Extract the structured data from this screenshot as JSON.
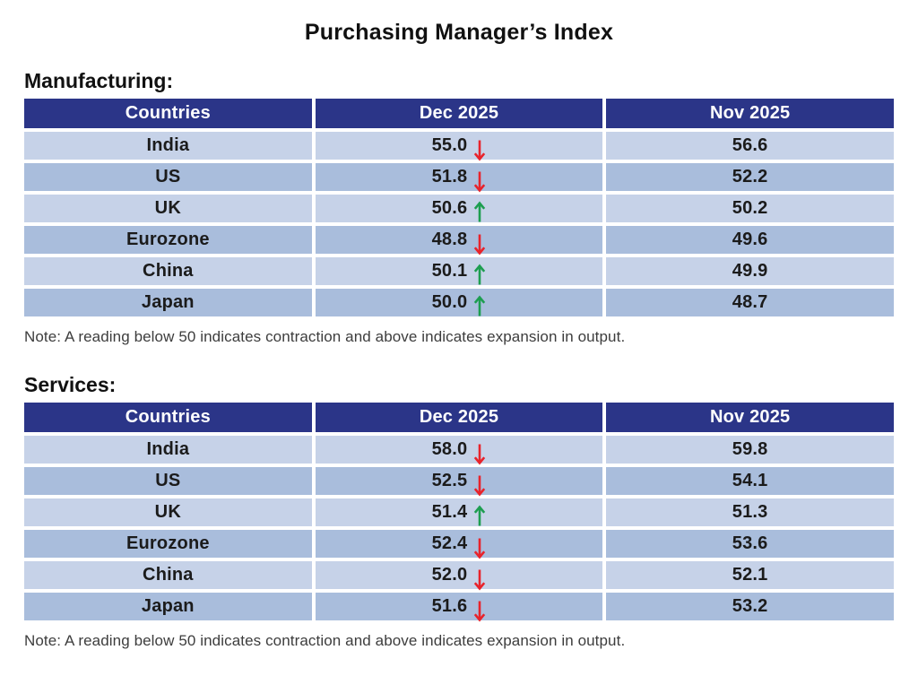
{
  "title": "Purchasing Manager’s Index",
  "colors": {
    "header_bg": "#2B3588",
    "row_light": "#C6D2E8",
    "row_dark": "#A9BDDC",
    "arrow_up": "#1D9E50",
    "arrow_down": "#E8232B",
    "header_text": "#FFFFFF",
    "body_text": "#1B1B1B"
  },
  "tables": [
    {
      "label": "Manufacturing:",
      "columns": [
        "Countries",
        "Dec 2025",
        "Nov 2025"
      ],
      "rows": [
        {
          "country": "India",
          "dec": "55.0",
          "trend": "down",
          "nov": "56.6"
        },
        {
          "country": "US",
          "dec": "51.8",
          "trend": "down",
          "nov": "52.2"
        },
        {
          "country": "UK",
          "dec": "50.6",
          "trend": "up",
          "nov": "50.2"
        },
        {
          "country": "Eurozone",
          "dec": "48.8",
          "trend": "down",
          "nov": "49.6"
        },
        {
          "country": "China",
          "dec": "50.1",
          "trend": "up",
          "nov": "49.9"
        },
        {
          "country": "Japan",
          "dec": "50.0",
          "trend": "up",
          "nov": "48.7"
        }
      ],
      "note": "Note: A reading below 50 indicates contraction and above indicates expansion in output."
    },
    {
      "label": "Services:",
      "columns": [
        "Countries",
        "Dec 2025",
        "Nov 2025"
      ],
      "rows": [
        {
          "country": "India",
          "dec": "58.0",
          "trend": "down",
          "nov": "59.8"
        },
        {
          "country": "US",
          "dec": "52.5",
          "trend": "down",
          "nov": "54.1"
        },
        {
          "country": "UK",
          "dec": "51.4",
          "trend": "up",
          "nov": "51.3"
        },
        {
          "country": "Eurozone",
          "dec": "52.4",
          "trend": "down",
          "nov": "53.6"
        },
        {
          "country": "China",
          "dec": "52.0",
          "trend": "down",
          "nov": "52.1"
        },
        {
          "country": "Japan",
          "dec": "51.6",
          "trend": "down",
          "nov": "53.2"
        }
      ],
      "note": "Note: A reading below 50 indicates contraction and above indicates expansion in output."
    }
  ],
  "chart_data": [
    {
      "type": "table",
      "title": "Purchasing Manager’s Index — Manufacturing",
      "categories": [
        "India",
        "US",
        "UK",
        "Eurozone",
        "China",
        "Japan"
      ],
      "series": [
        {
          "name": "Dec 2025",
          "values": [
            55.0,
            51.8,
            50.6,
            48.8,
            50.1,
            50.0
          ]
        },
        {
          "name": "Nov 2025",
          "values": [
            56.6,
            52.2,
            50.2,
            49.6,
            49.9,
            48.7
          ]
        }
      ],
      "trend_dec_vs_nov": [
        "down",
        "down",
        "up",
        "down",
        "up",
        "up"
      ],
      "annotations": [
        "Note: A reading below 50 indicates contraction and above indicates expansion in output."
      ]
    },
    {
      "type": "table",
      "title": "Purchasing Manager’s Index — Services",
      "categories": [
        "India",
        "US",
        "UK",
        "Eurozone",
        "China",
        "Japan"
      ],
      "series": [
        {
          "name": "Dec 2025",
          "values": [
            58.0,
            52.5,
            51.4,
            52.4,
            52.0,
            51.6
          ]
        },
        {
          "name": "Nov 2025",
          "values": [
            59.8,
            54.1,
            51.3,
            53.6,
            52.1,
            53.2
          ]
        }
      ],
      "trend_dec_vs_nov": [
        "down",
        "down",
        "up",
        "down",
        "down",
        "down"
      ],
      "annotations": [
        "Note: A reading below 50 indicates contraction and above indicates expansion in output."
      ]
    }
  ]
}
